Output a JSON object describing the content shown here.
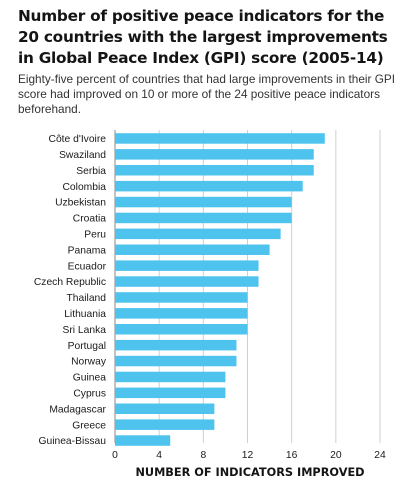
{
  "chart_data": {
    "type": "bar",
    "orientation": "horizontal",
    "title": "Number of positive peace indicators for the 20 countries with the largest improvements in Global Peace Index (GPI) score (2005-14)",
    "subtitle": "Eighty-five percent of countries that had large improvements in their GPI score had improved on 10 or more of the 24 positive peace indicators beforehand.",
    "xlabel": "NUMBER OF INDICATORS IMPROVED",
    "ylabel": "",
    "categories": [
      "Côte d'Ivoire",
      "Swaziland",
      "Serbia",
      "Colombia",
      "Uzbekistan",
      "Croatia",
      "Peru",
      "Panama",
      "Ecuador",
      "Czech Republic",
      "Thailand",
      "Lithuania",
      "Sri Lanka",
      "Portugal",
      "Norway",
      "Guinea",
      "Cyprus",
      "Madagascar",
      "Greece",
      "Guinea-Bissau"
    ],
    "values": [
      19,
      18,
      18,
      17,
      16,
      16,
      15,
      14,
      13,
      13,
      12,
      12,
      12,
      11,
      11,
      10,
      10,
      9,
      9,
      5
    ],
    "xlim": [
      0,
      24
    ],
    "x_ticks": [
      "0",
      "4",
      "8",
      "12",
      "16",
      "20",
      "24"
    ],
    "grid": true,
    "legend": "none",
    "bar_color": "#4dc3ee",
    "grid_color": "#cfcfcf"
  }
}
